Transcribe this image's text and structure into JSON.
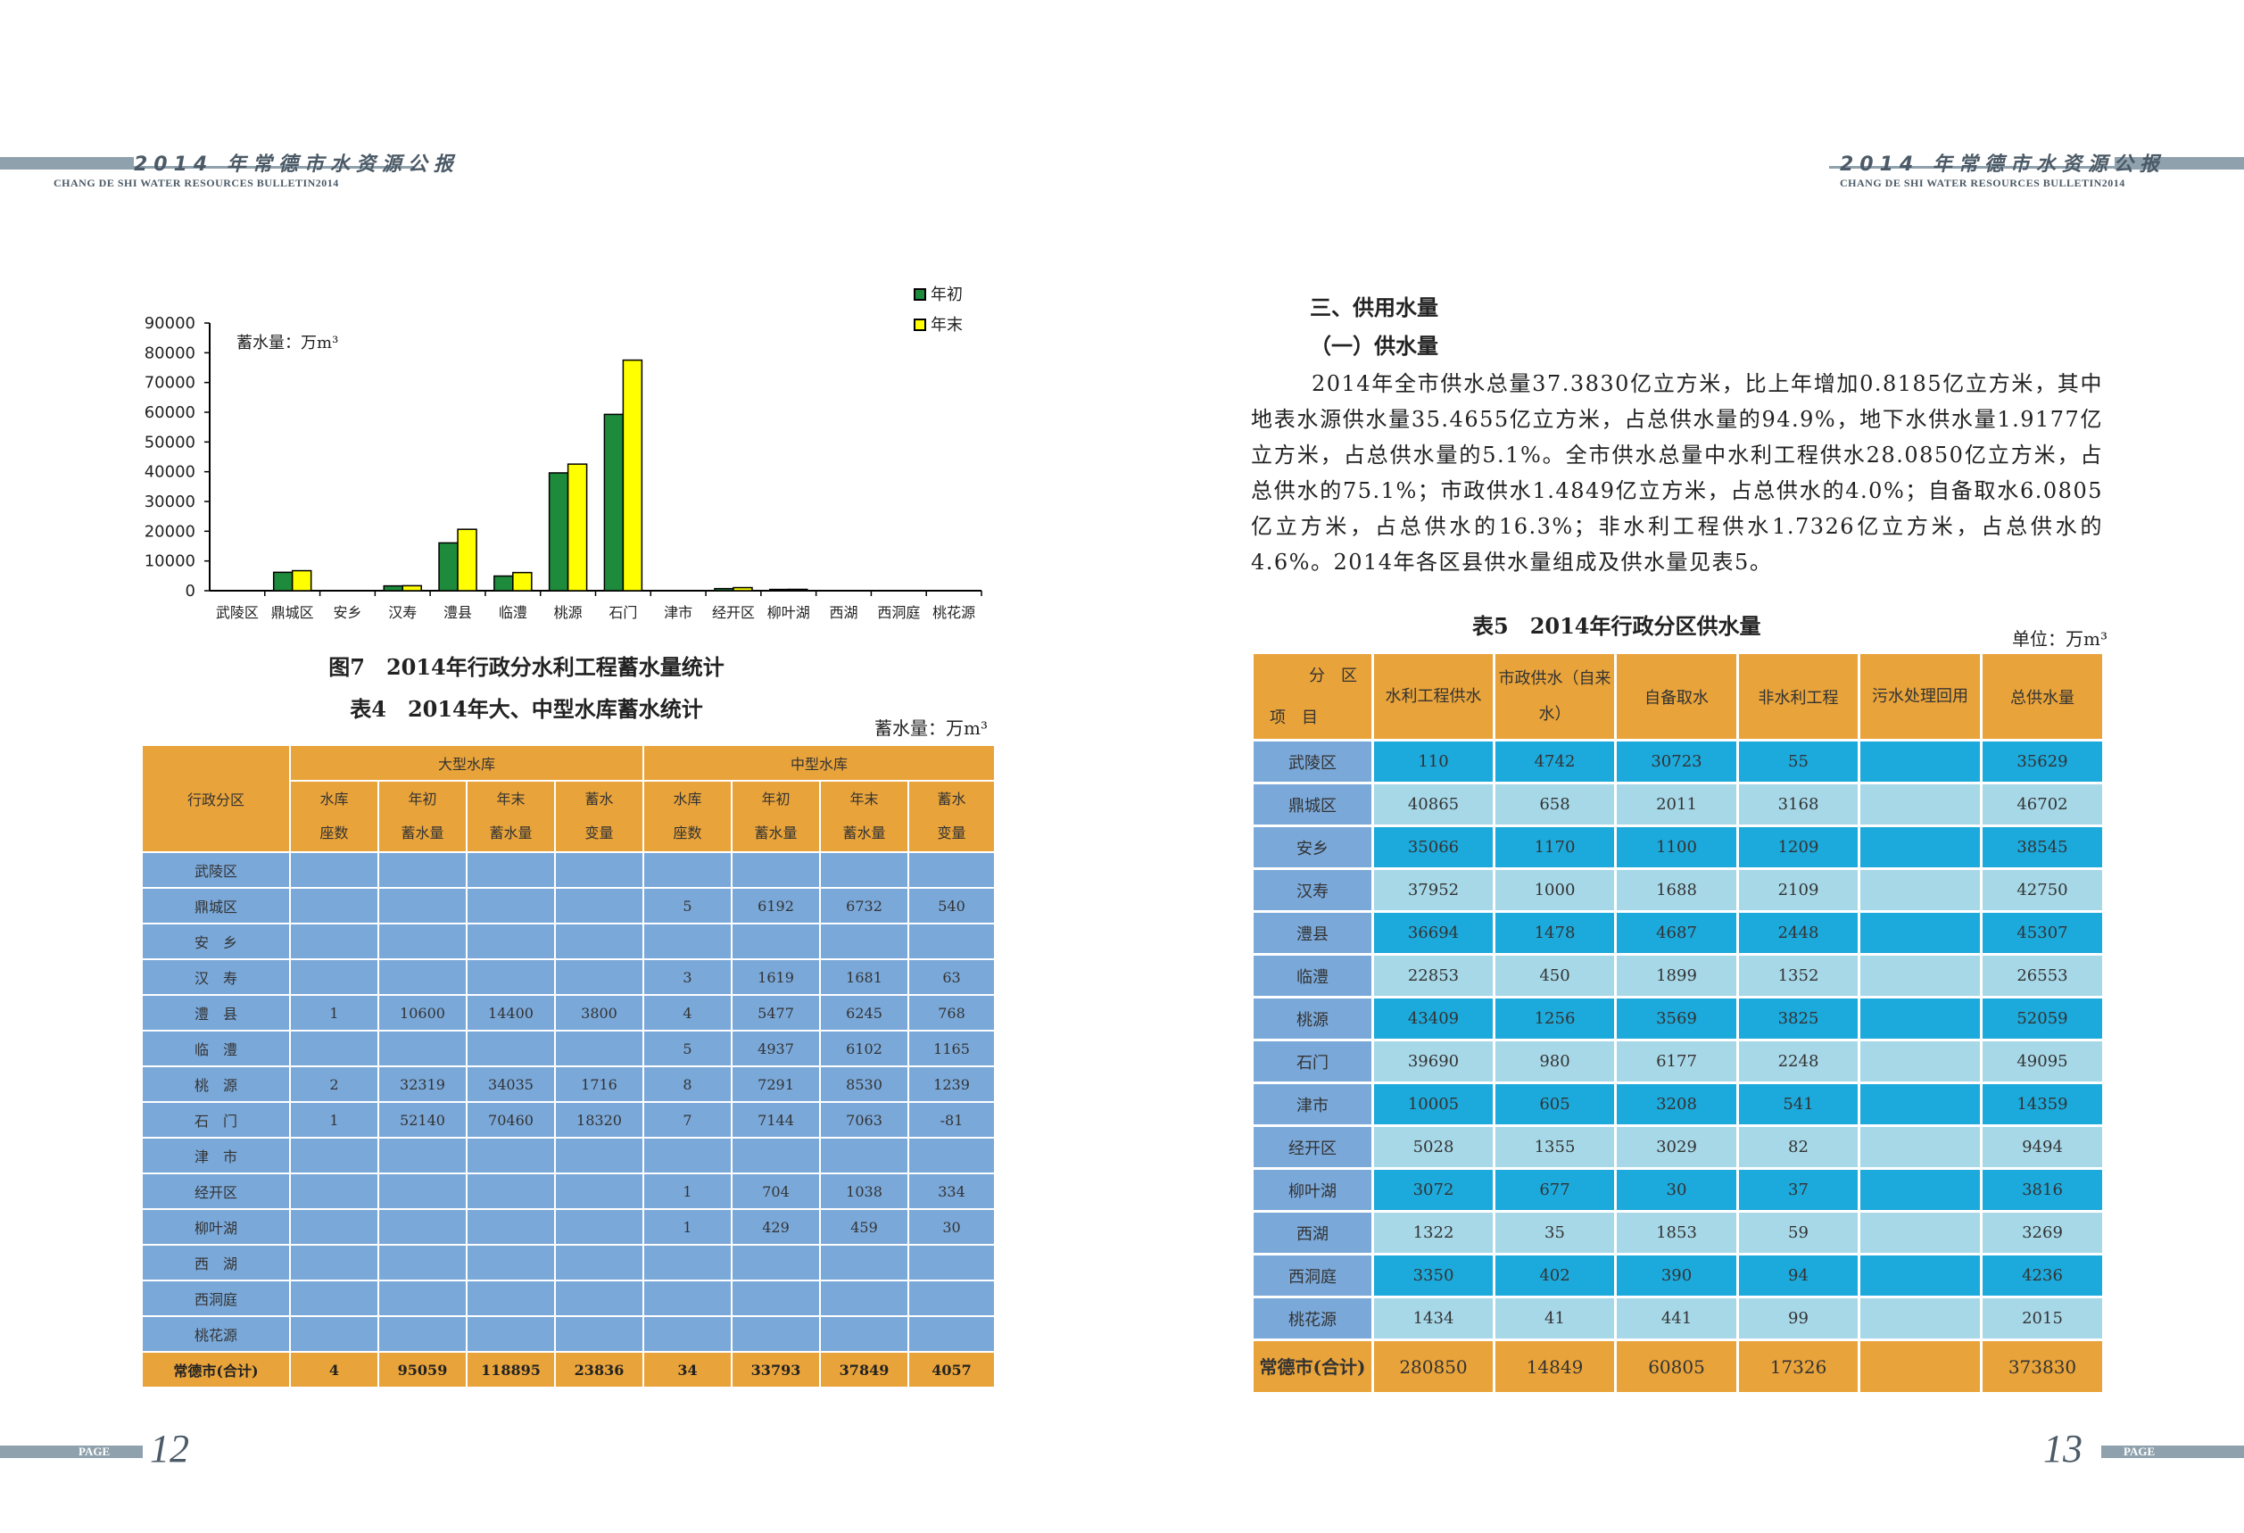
{
  "header": {
    "title": "2014 年常德市水资源公报",
    "subtitle": "CHANG DE SHI WATER RESOURCES BULLETIN2014"
  },
  "footer": {
    "page_label": "PAGE",
    "left_page": "12",
    "right_page": "13"
  },
  "colors": {
    "orange": "#e8a33a",
    "blue": "#7aa8d9",
    "cyan_dark": "#1ca9db",
    "cyan_light": "#a7d8e8",
    "green": "#1e8a3c",
    "yellow": "#ffff00"
  },
  "chart_data": {
    "type": "bar",
    "title": "",
    "ylabel": "蓄水量：万m³",
    "ylim": [
      0,
      90000
    ],
    "yticks": [
      "90000",
      "80000",
      "70000",
      "60000",
      "50000",
      "40000",
      "30000",
      "20000",
      "10000",
      "0"
    ],
    "categories": [
      "武陵区",
      "鼎城区",
      "安乡",
      "汉寿",
      "澧县",
      "临澧",
      "桃源",
      "石门",
      "津市",
      "经开区",
      "柳叶湖",
      "西湖",
      "西洞庭",
      "桃花源"
    ],
    "series": [
      {
        "name": "年初",
        "color": "#1e8a3c",
        "values": [
          0,
          6192,
          0,
          1619,
          16077,
          4937,
          39610,
          59284,
          0,
          704,
          429,
          0,
          0,
          0
        ]
      },
      {
        "name": "年末",
        "color": "#ffff00",
        "values": [
          0,
          6732,
          0,
          1681,
          20645,
          6102,
          42565,
          77523,
          0,
          1038,
          459,
          0,
          0,
          0
        ]
      }
    ],
    "legend_position": "top-right"
  },
  "fig7_caption": "图7　2014年行政分水利工程蓄水量统计",
  "table4": {
    "caption": "表4　2014年大、中型水库蓄水统计",
    "unit": "蓄水量：万m³",
    "group_large": "大型水库",
    "group_medium": "中型水库",
    "col_district": "行政分区",
    "subcols": [
      [
        "水库",
        "座数"
      ],
      [
        "年初",
        "蓄水量"
      ],
      [
        "年末",
        "蓄水量"
      ],
      [
        "蓄水",
        "变量"
      ],
      [
        "水库",
        "座数"
      ],
      [
        "年初",
        "蓄水量"
      ],
      [
        "年末",
        "蓄水量"
      ],
      [
        "蓄水",
        "变量"
      ]
    ],
    "rows": [
      [
        "武陵区",
        "",
        "",
        "",
        "",
        "",
        "",
        "",
        ""
      ],
      [
        "鼎城区",
        "",
        "",
        "",
        "",
        "5",
        "6192",
        "6732",
        "540"
      ],
      [
        "安　乡",
        "",
        "",
        "",
        "",
        "",
        "",
        "",
        ""
      ],
      [
        "汉　寿",
        "",
        "",
        "",
        "",
        "3",
        "1619",
        "1681",
        "63"
      ],
      [
        "澧　县",
        "1",
        "10600",
        "14400",
        "3800",
        "4",
        "5477",
        "6245",
        "768"
      ],
      [
        "临　澧",
        "",
        "",
        "",
        "",
        "5",
        "4937",
        "6102",
        "1165"
      ],
      [
        "桃　源",
        "2",
        "32319",
        "34035",
        "1716",
        "8",
        "7291",
        "8530",
        "1239"
      ],
      [
        "石　门",
        "1",
        "52140",
        "70460",
        "18320",
        "7",
        "7144",
        "7063",
        "-81"
      ],
      [
        "津　市",
        "",
        "",
        "",
        "",
        "",
        "",
        "",
        ""
      ],
      [
        "经开区",
        "",
        "",
        "",
        "",
        "1",
        "704",
        "1038",
        "334"
      ],
      [
        "柳叶湖",
        "",
        "",
        "",
        "",
        "1",
        "429",
        "459",
        "30"
      ],
      [
        "西　湖",
        "",
        "",
        "",
        "",
        "",
        "",
        "",
        ""
      ],
      [
        "西洞庭",
        "",
        "",
        "",
        "",
        "",
        "",
        "",
        ""
      ],
      [
        "桃花源",
        "",
        "",
        "",
        "",
        "",
        "",
        "",
        ""
      ]
    ],
    "total": [
      "常德市(合计)",
      "4",
      "95059",
      "118895",
      "23836",
      "34",
      "33793",
      "37849",
      "4057"
    ]
  },
  "section_title": "三、供用水量",
  "subsection_title": "（一）供水量",
  "paragraph": "2014年全市供水总量37.3830亿立方米，比上年增加0.8185亿立方米，其中地表水源供水量35.4655亿立方米，占总供水量的94.9%，地下水供水量1.9177亿立方米，占总供水量的5.1%。全市供水总量中水利工程供水28.0850亿立方米，占总供水的75.1%；市政供水1.4849亿立方米，占总供水的4.0%；自备取水6.0805亿立方米，占总供水的16.3%；非水利工程供水1.7326亿立方米，占总供水的4.6%。2014年各区县供水量组成及供水量见表5。",
  "table5": {
    "caption": "表5　2014年行政分区供水量",
    "unit": "单位：万m³",
    "corner_top": "分　区",
    "corner_bottom": "项　目",
    "headers": [
      "水利工程供水",
      "市政供水（自来水）",
      "自备取水",
      "非水利工程",
      "污水处理回用",
      "总供水量"
    ],
    "rows": [
      [
        "武陵区",
        "110",
        "4742",
        "30723",
        "55",
        "",
        "35629"
      ],
      [
        "鼎城区",
        "40865",
        "658",
        "2011",
        "3168",
        "",
        "46702"
      ],
      [
        "安乡",
        "35066",
        "1170",
        "1100",
        "1209",
        "",
        "38545"
      ],
      [
        "汉寿",
        "37952",
        "1000",
        "1688",
        "2109",
        "",
        "42750"
      ],
      [
        "澧县",
        "36694",
        "1478",
        "4687",
        "2448",
        "",
        "45307"
      ],
      [
        "临澧",
        "22853",
        "450",
        "1899",
        "1352",
        "",
        "26553"
      ],
      [
        "桃源",
        "43409",
        "1256",
        "3569",
        "3825",
        "",
        "52059"
      ],
      [
        "石门",
        "39690",
        "980",
        "6177",
        "2248",
        "",
        "49095"
      ],
      [
        "津市",
        "10005",
        "605",
        "3208",
        "541",
        "",
        "14359"
      ],
      [
        "经开区",
        "5028",
        "1355",
        "3029",
        "82",
        "",
        "9494"
      ],
      [
        "柳叶湖",
        "3072",
        "677",
        "30",
        "37",
        "",
        "3816"
      ],
      [
        "西湖",
        "1322",
        "35",
        "1853",
        "59",
        "",
        "3269"
      ],
      [
        "西洞庭",
        "3350",
        "402",
        "390",
        "94",
        "",
        "4236"
      ],
      [
        "桃花源",
        "1434",
        "41",
        "441",
        "99",
        "",
        "2015"
      ]
    ],
    "total": [
      "常德市(合计)",
      "280850",
      "14849",
      "60805",
      "17326",
      "",
      "373830"
    ]
  }
}
